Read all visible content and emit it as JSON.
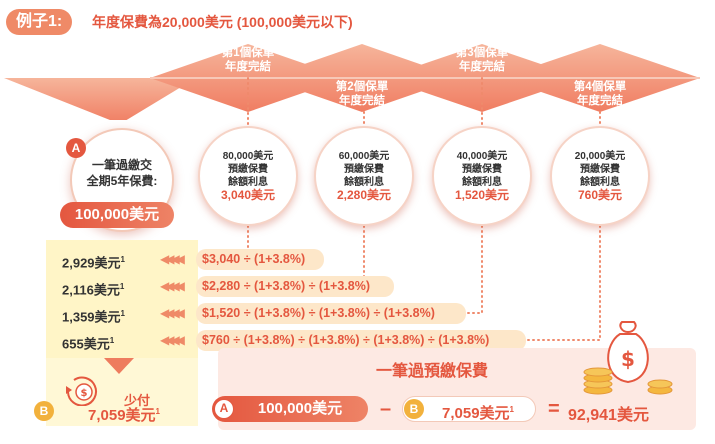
{
  "header": {
    "example_label": "例子1:",
    "title": "年度保費為20,000美元 (100,000美元以下)"
  },
  "ribbons": [
    {
      "line1": "第1個保單",
      "line2": "年度完結"
    },
    {
      "line1": "第2個保單",
      "line2": "年度完結"
    },
    {
      "line1": "第3個保單",
      "line2": "年度完結"
    },
    {
      "line1": "第4個保單",
      "line2": "年度完結"
    }
  ],
  "upfront": {
    "badge": "A",
    "line1": "一筆過繳交",
    "line2": "全期5年保費:",
    "amount": "100,000美元"
  },
  "years": [
    {
      "line1": "80,000美元",
      "line2": "預繳保費",
      "line3": "餘額利息",
      "amount": "3,040美元"
    },
    {
      "line1": "60,000美元",
      "line2": "預繳保費",
      "line3": "餘額利息",
      "amount": "2,280美元"
    },
    {
      "line1": "40,000美元",
      "line2": "預繳保費",
      "line3": "餘額利息",
      "amount": "1,520美元"
    },
    {
      "line1": "20,000美元",
      "line2": "預繳保費",
      "line3": "餘額利息",
      "amount": "760美元"
    }
  ],
  "rows": [
    {
      "value": "2,929美元",
      "note": "1",
      "formula": "$3,040 ÷ (1+3.8%)"
    },
    {
      "value": "2,116美元",
      "note": "1",
      "formula": "$2,280 ÷ (1+3.8%) ÷ (1+3.8%)"
    },
    {
      "value": "1,359美元",
      "note": "1",
      "formula": "$1,520 ÷ (1+3.8%) ÷ (1+3.8%) ÷ (1+3.8%)"
    },
    {
      "value": "655美元",
      "note": "1",
      "formula": "$760 ÷ (1+3.8%) ÷ (1+3.8%) ÷ (1+3.8%) ÷ (1+3.8%)"
    }
  ],
  "savings": {
    "badge": "B",
    "label": "少付",
    "amount": "7,059美元",
    "note": "1"
  },
  "equation": {
    "title": "一筆過預繳保費",
    "a_badge": "A",
    "a_amount": "100,000美元",
    "minus": "–",
    "b_badge": "B",
    "b_amount": "7,059美元",
    "b_note": "1",
    "equals": "=",
    "result": "92,941美元"
  },
  "colors": {
    "accent": "#e4573f",
    "ribbon": "#f29c7d",
    "yellow": "#fff5c7",
    "pink": "#fde9e3"
  }
}
